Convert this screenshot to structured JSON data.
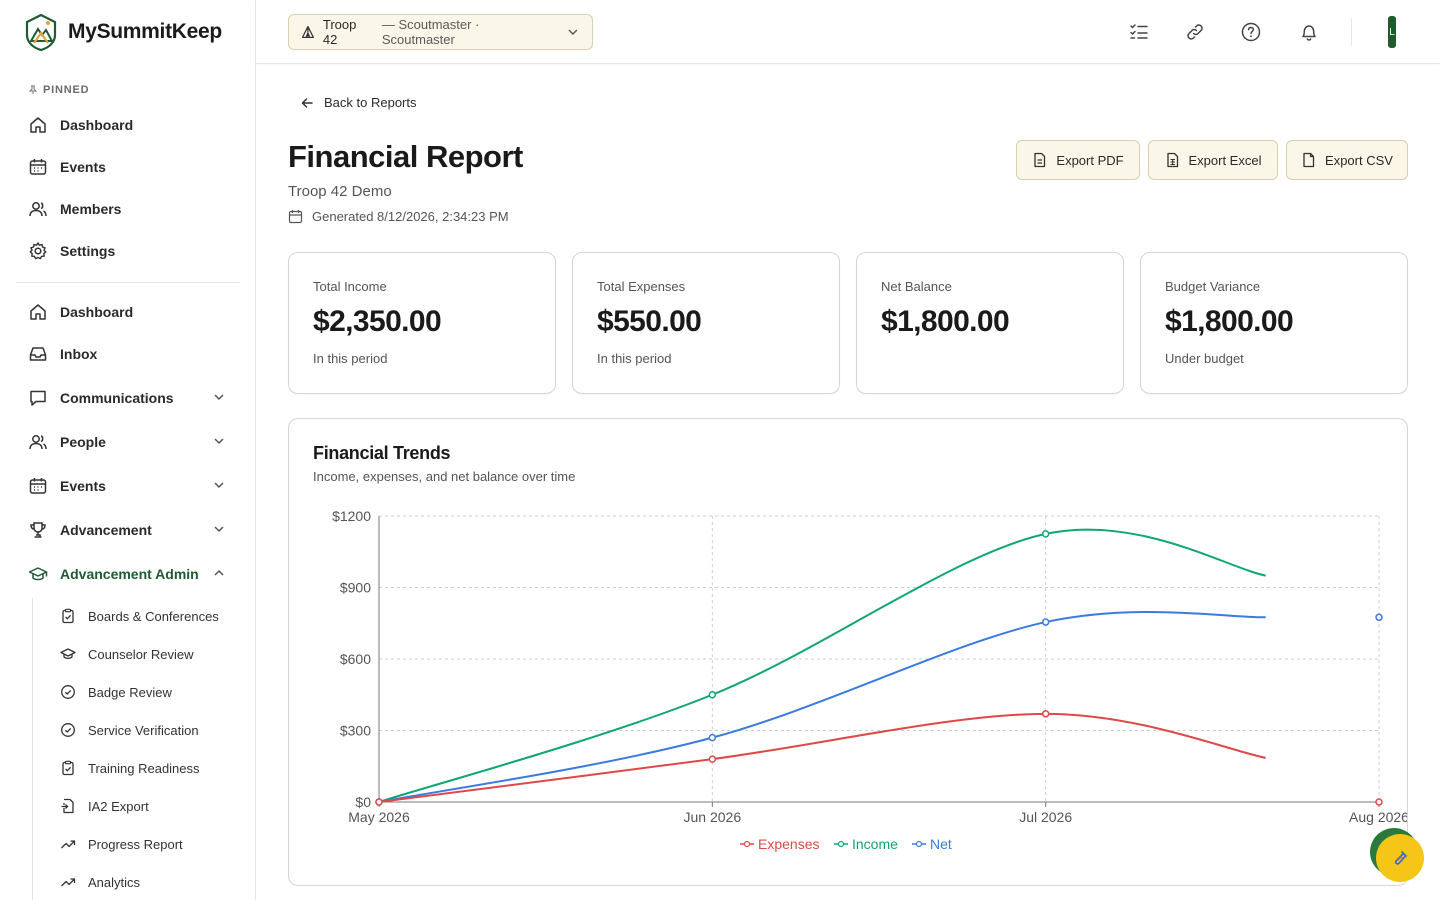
{
  "app": {
    "name": "MySummitKeep"
  },
  "sidebar": {
    "pinned_label": "PINNED",
    "pinned": [
      {
        "label": "Dashboard",
        "icon": "home-icon"
      },
      {
        "label": "Events",
        "icon": "calendar-icon"
      },
      {
        "label": "Members",
        "icon": "users-icon"
      },
      {
        "label": "Settings",
        "icon": "gear-icon"
      }
    ],
    "items": [
      {
        "label": "Dashboard",
        "icon": "home-icon",
        "expandable": false
      },
      {
        "label": "Inbox",
        "icon": "inbox-icon",
        "expandable": false
      },
      {
        "label": "Communications",
        "icon": "message-icon",
        "expandable": true,
        "expanded": false
      },
      {
        "label": "People",
        "icon": "users-icon",
        "expandable": true,
        "expanded": false
      },
      {
        "label": "Events",
        "icon": "calendar-icon",
        "expandable": true,
        "expanded": false
      },
      {
        "label": "Advancement",
        "icon": "trophy-icon",
        "expandable": true,
        "expanded": false
      },
      {
        "label": "Advancement Admin",
        "icon": "graduation-cap-icon",
        "expandable": true,
        "expanded": true
      }
    ],
    "sub_items": [
      {
        "label": "Boards & Conferences",
        "icon": "clipboard-check-icon"
      },
      {
        "label": "Counselor Review",
        "icon": "graduation-cap-icon"
      },
      {
        "label": "Badge Review",
        "icon": "check-circle-icon"
      },
      {
        "label": "Service Verification",
        "icon": "check-circle-icon"
      },
      {
        "label": "Training Readiness",
        "icon": "clipboard-check-icon"
      },
      {
        "label": "IA2 Export",
        "icon": "file-export-icon"
      },
      {
        "label": "Progress Report",
        "icon": "trending-up-icon"
      },
      {
        "label": "Analytics",
        "icon": "trending-up-icon"
      }
    ]
  },
  "header": {
    "troop": "Troop 42",
    "role_text": "— Scoutmaster · Scoutmaster",
    "avatar_initial": "L"
  },
  "page": {
    "back_label": "Back to Reports",
    "title": "Financial Report",
    "subtitle": "Troop 42 Demo",
    "generated": "Generated 8/12/2026, 2:34:23 PM",
    "exports": [
      "Export PDF",
      "Export Excel",
      "Export CSV"
    ]
  },
  "stats": [
    {
      "label": "Total Income",
      "value": "$2,350.00",
      "note": "In this period"
    },
    {
      "label": "Total Expenses",
      "value": "$550.00",
      "note": "In this period"
    },
    {
      "label": "Net Balance",
      "value": "$1,800.00",
      "note": ""
    },
    {
      "label": "Budget Variance",
      "value": "$1,800.00",
      "note": "Under budget"
    }
  ],
  "colors": {
    "accent": "#1f5a32",
    "income": "#10a574",
    "expenses": "#e04848",
    "net": "#3b7be0",
    "button_bg": "#faf6e8"
  },
  "chart_card": {
    "title": "Financial Trends",
    "subtitle": "Income, expenses, and net balance over time"
  },
  "chart_data": {
    "type": "line",
    "x": [
      "May 2026",
      "Jun 2026",
      "Jul 2026",
      "Aug 2026"
    ],
    "y_ticks": [
      "$0",
      "$300",
      "$600",
      "$900",
      "$1200"
    ],
    "ylim": [
      0,
      1200
    ],
    "grid": true,
    "legend_position": "bottom-center",
    "series": [
      {
        "name": "Expenses",
        "color": "#e04848",
        "values": [
          0,
          180,
          370,
          0
        ],
        "tail_end": 185
      },
      {
        "name": "Income",
        "color": "#10a574",
        "values": [
          0,
          450,
          1125,
          null
        ],
        "tail_end": 950
      },
      {
        "name": "Net",
        "color": "#3b7be0",
        "values": [
          0,
          270,
          755,
          775
        ],
        "tail_end": 775
      }
    ]
  }
}
